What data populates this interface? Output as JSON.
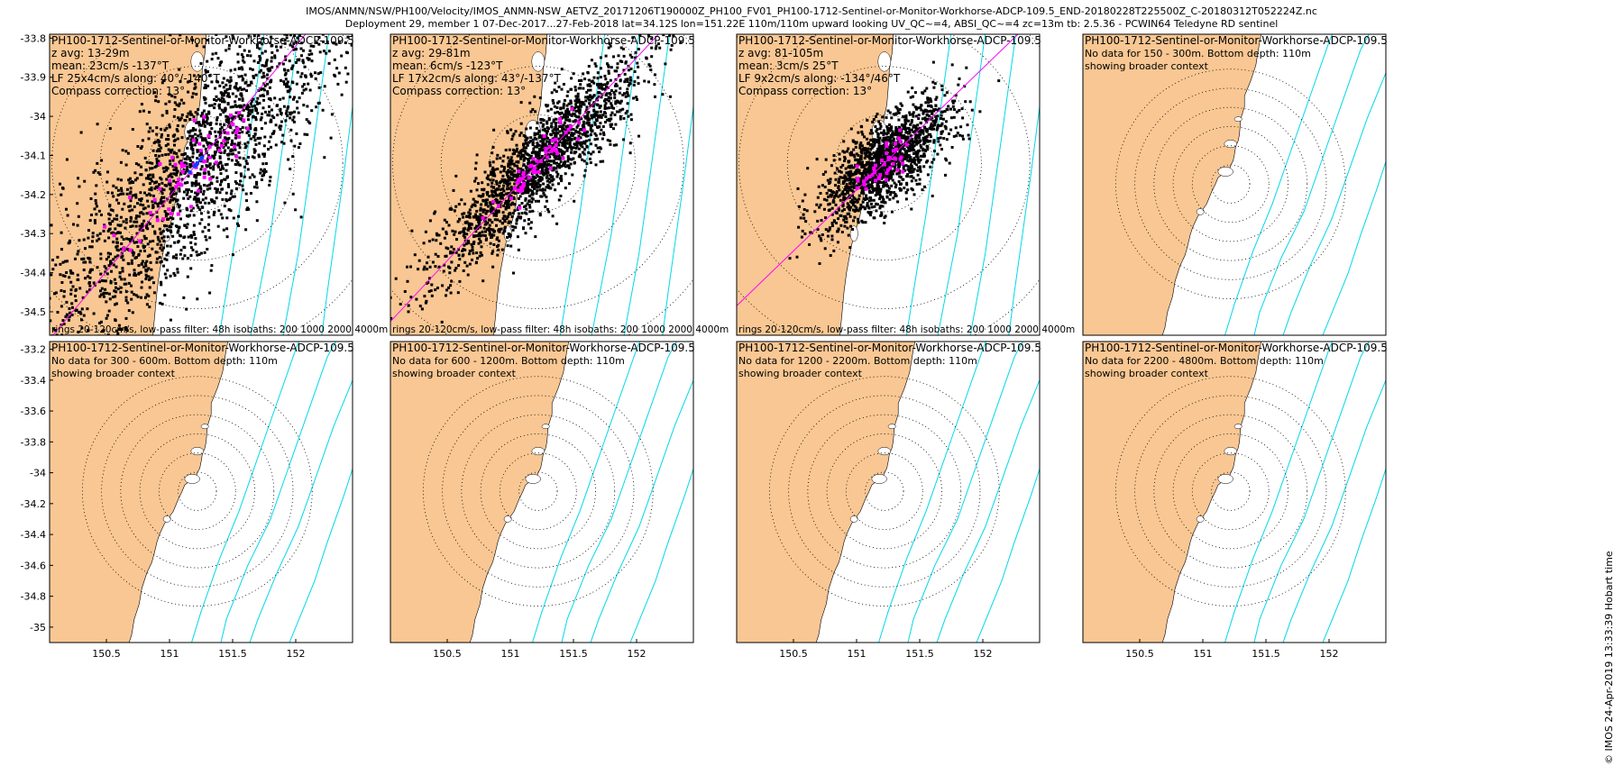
{
  "header": {
    "line1": "IMOS/ANMN/NSW/PH100/Velocity/IMOS_ANMN-NSW_AETVZ_20171206T190000Z_PH100_FV01_PH100-1712-Sentinel-or-Monitor-Workhorse-ADCP-109.5_END-20180228T225500Z_C-20180312T052224Z.nc",
    "line2": "Deployment 29, member 1 07-Dec-2017...27-Feb-2018 lat=34.12S lon=151.22E 110m/110m upward looking UV_QC~=4, ABSI_QC~=4 zc=13m tb: 2.5.36 - PCWIN64 Teledyne RD sentinel"
  },
  "stamp": "© IMOS 24-Apr-2019 13:33:39 Hobart time",
  "colors": {
    "land": "#f9c793",
    "sea": "#ffffff",
    "isobath": "#00d8e8",
    "points": "#000000",
    "mean": "#ff00ff",
    "principal": "#ff00ff"
  },
  "chart_data": [
    {
      "type": "scatter",
      "row": 1,
      "col": 1,
      "title": "PH100-1712-Sentinel-or-Monitor-Workhorse-ADCP-109.5",
      "lines": [
        "z avg: 13-29m",
        "mean: 23cm/s -137°T",
        "LF 25x4cm/s along: 40°/-140°T",
        "Compass correction: 13°"
      ],
      "footer": "rings 20-120cm/s, low-pass filter: 48h isobaths: 200 1000 2000 4000m",
      "yticks": [
        "-33.8",
        "-33.9",
        "-34",
        "-34.1",
        "-34.2",
        "-34.3",
        "-34.4",
        "-34.5"
      ],
      "xticks": [],
      "xlim": [
        150.05,
        152.45
      ],
      "ylim": [
        -34.56,
        -33.79
      ],
      "center": [
        151.22,
        -34.12
      ],
      "rings_cm_s": [
        20,
        40,
        60,
        80,
        100,
        120
      ],
      "ring_scale_deg_per_cm_s": 0.0062,
      "principal_axis_deg": 40,
      "cloud": {
        "major_cm_s": 50,
        "minor_cm_s": 14,
        "count": 2200,
        "seed": 11
      },
      "magenta": {
        "count": 60
      },
      "blue": {
        "count": 8
      }
    },
    {
      "type": "scatter",
      "row": 1,
      "col": 2,
      "title": "PH100-1712-Sentinel-or-Monitor-Workhorse-ADCP-109.5",
      "lines": [
        "z avg: 29-81m",
        "mean: 6cm/s -123°T",
        "LF 17x2cm/s along: 43°/-137°T",
        "Compass correction: 13°"
      ],
      "footer": "rings 20-120cm/s, low-pass filter: 48h isobaths: 200 1000 2000 4000m",
      "yticks": [],
      "xticks": [],
      "xlim": [
        150.05,
        152.45
      ],
      "ylim": [
        -34.56,
        -33.79
      ],
      "center": [
        151.22,
        -34.12
      ],
      "rings_cm_s": [
        20,
        40,
        60,
        80,
        100,
        120
      ],
      "ring_scale_deg_per_cm_s": 0.0062,
      "principal_axis_deg": 43,
      "cloud": {
        "major_cm_s": 30,
        "minor_cm_s": 7,
        "count": 1800,
        "seed": 23
      },
      "magenta": {
        "count": 55
      },
      "blue": {
        "count": 0
      }
    },
    {
      "type": "scatter",
      "row": 1,
      "col": 3,
      "title": "PH100-1712-Sentinel-or-Monitor-Workhorse-ADCP-109.5",
      "lines": [
        "z avg: 81-105m",
        "mean: 3cm/s 25°T",
        "LF 9x2cm/s along: -134°/46°T",
        "Compass correction: 13°"
      ],
      "footer": "rings 20-120cm/s, low-pass filter: 48h isobaths: 200 1000 2000 4000m",
      "yticks": [],
      "xticks": [],
      "xlim": [
        150.05,
        152.45
      ],
      "ylim": [
        -34.56,
        -33.79
      ],
      "center": [
        151.22,
        -34.12
      ],
      "rings_cm_s": [
        20,
        40,
        60,
        80,
        100,
        120
      ],
      "ring_scale_deg_per_cm_s": 0.0062,
      "principal_axis_deg": 46,
      "cloud": {
        "major_cm_s": 17,
        "minor_cm_s": 7,
        "count": 1500,
        "seed": 37
      },
      "magenta": {
        "count": 45
      },
      "blue": {
        "count": 0
      }
    },
    {
      "type": "scatter",
      "row": 1,
      "col": 4,
      "title": "PH100-1712-Sentinel-or-Monitor-Workhorse-ADCP-109.5",
      "lines": [
        "No data for 150 - 300m. Bottom depth: 110m",
        "showing broader context"
      ],
      "footer": "",
      "yticks": [],
      "xticks": [],
      "xlim": [
        150.05,
        152.45
      ],
      "ylim": [
        -35.1,
        -33.15
      ],
      "center": [
        151.22,
        -34.12
      ],
      "rings_cm_s": [
        20,
        40,
        60,
        80,
        100,
        120
      ],
      "ring_scale_deg_per_cm_s": 0.0062,
      "principal_axis_deg": null,
      "cloud": null,
      "magenta": null,
      "blue": null
    },
    {
      "type": "scatter",
      "row": 2,
      "col": 1,
      "title": "PH100-1712-Sentinel-or-Monitor-Workhorse-ADCP-109.5",
      "lines": [
        "No data for 300 - 600m. Bottom depth: 110m",
        "showing broader context"
      ],
      "footer": "",
      "yticks": [
        "-33.2",
        "-33.4",
        "-33.6",
        "-33.8",
        "-34",
        "-34.2",
        "-34.4",
        "-34.6",
        "-34.8",
        "-35"
      ],
      "xticks": [
        "150.5",
        "151",
        "151.5",
        "152"
      ],
      "xlim": [
        150.05,
        152.45
      ],
      "ylim": [
        -35.1,
        -33.15
      ],
      "center": [
        151.22,
        -34.12
      ],
      "rings_cm_s": [
        20,
        40,
        60,
        80,
        100,
        120
      ],
      "ring_scale_deg_per_cm_s": 0.0062,
      "principal_axis_deg": null,
      "cloud": null,
      "magenta": null,
      "blue": null
    },
    {
      "type": "scatter",
      "row": 2,
      "col": 2,
      "title": "PH100-1712-Sentinel-or-Monitor-Workhorse-ADCP-109.5",
      "lines": [
        "No data for 600 - 1200m. Bottom depth: 110m",
        "showing broader context"
      ],
      "footer": "",
      "yticks": [],
      "xticks": [
        "150.5",
        "151",
        "151.5",
        "152"
      ],
      "xlim": [
        150.05,
        152.45
      ],
      "ylim": [
        -35.1,
        -33.15
      ],
      "center": [
        151.22,
        -34.12
      ],
      "rings_cm_s": [
        20,
        40,
        60,
        80,
        100,
        120
      ],
      "ring_scale_deg_per_cm_s": 0.0062,
      "principal_axis_deg": null,
      "cloud": null,
      "magenta": null,
      "blue": null
    },
    {
      "type": "scatter",
      "row": 2,
      "col": 3,
      "title": "PH100-1712-Sentinel-or-Monitor-Workhorse-ADCP-109.5",
      "lines": [
        "No data for 1200 - 2200m. Bottom depth: 110m",
        "showing broader context"
      ],
      "footer": "",
      "yticks": [],
      "xticks": [
        "150.5",
        "151",
        "151.5",
        "152"
      ],
      "xlim": [
        150.05,
        152.45
      ],
      "ylim": [
        -35.1,
        -33.15
      ],
      "center": [
        151.22,
        -34.12
      ],
      "rings_cm_s": [
        20,
        40,
        60,
        80,
        100,
        120
      ],
      "ring_scale_deg_per_cm_s": 0.0062,
      "principal_axis_deg": null,
      "cloud": null,
      "magenta": null,
      "blue": null
    },
    {
      "type": "scatter",
      "row": 2,
      "col": 4,
      "title": "PH100-1712-Sentinel-or-Monitor-Workhorse-ADCP-109.5",
      "lines": [
        "No data for 2200 - 4800m. Bottom depth: 110m",
        "showing broader context"
      ],
      "footer": "",
      "yticks": [],
      "xticks": [
        "150.5",
        "151",
        "151.5",
        "152"
      ],
      "xlim": [
        150.05,
        152.45
      ],
      "ylim": [
        -35.1,
        -33.15
      ],
      "center": [
        151.22,
        -34.12
      ],
      "rings_cm_s": [
        20,
        40,
        60,
        80,
        100,
        120
      ],
      "ring_scale_deg_per_cm_s": 0.0062,
      "principal_axis_deg": null,
      "cloud": null,
      "magenta": null,
      "blue": null
    }
  ]
}
